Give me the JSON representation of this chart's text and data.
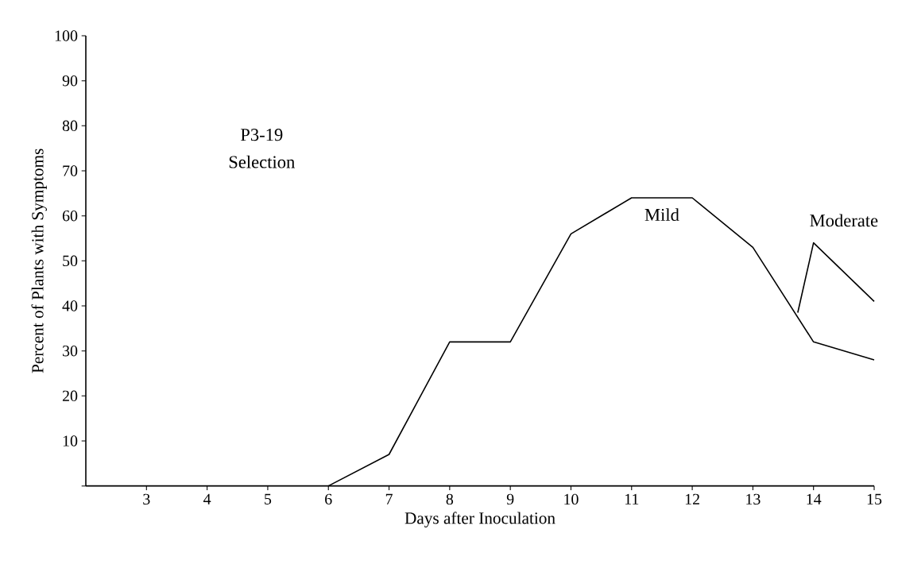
{
  "chart_data": {
    "type": "line",
    "xlabel": "Days after Inoculation",
    "ylabel": "Percent of Plants with Symptoms",
    "x": [
      6,
      7,
      8,
      9,
      10,
      11,
      12,
      13,
      14,
      15
    ],
    "series": [
      {
        "name": "Mild",
        "color": "#000000",
        "values": [
          0,
          7,
          32,
          32,
          56,
          64,
          64,
          53,
          32,
          28
        ]
      },
      {
        "name": "Moderate",
        "color": "#000000",
        "x": [
          13.74,
          14,
          15
        ],
        "values": [
          38.5,
          54,
          41
        ]
      }
    ],
    "xlim": [
      2,
      15
    ],
    "ylim": [
      0,
      100
    ],
    "xticks": [
      3,
      4,
      5,
      6,
      7,
      8,
      9,
      10,
      11,
      12,
      13,
      14,
      15
    ],
    "yticks": [
      {
        "value": 0,
        "label": null
      },
      10,
      20,
      30,
      40,
      50,
      60,
      70,
      80,
      90,
      100
    ],
    "annotations": [
      "P3-19",
      "Selection"
    ]
  }
}
